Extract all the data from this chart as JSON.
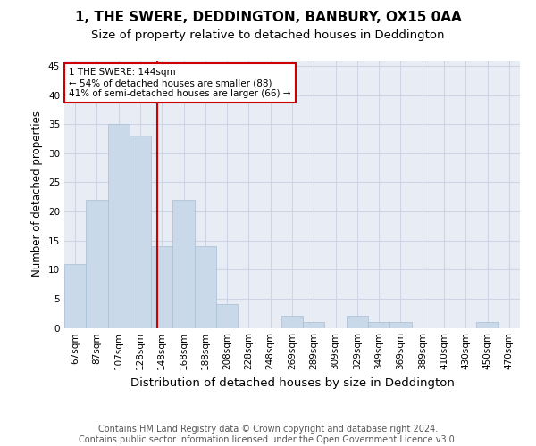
{
  "title": "1, THE SWERE, DEDDINGTON, BANBURY, OX15 0AA",
  "subtitle": "Size of property relative to detached houses in Deddington",
  "xlabel": "Distribution of detached houses by size in Deddington",
  "ylabel": "Number of detached properties",
  "categories": [
    "67sqm",
    "87sqm",
    "107sqm",
    "128sqm",
    "148sqm",
    "168sqm",
    "188sqm",
    "208sqm",
    "228sqm",
    "248sqm",
    "269sqm",
    "289sqm",
    "309sqm",
    "329sqm",
    "349sqm",
    "369sqm",
    "389sqm",
    "410sqm",
    "430sqm",
    "450sqm",
    "470sqm"
  ],
  "values": [
    11,
    22,
    35,
    33,
    14,
    22,
    14,
    4,
    0,
    0,
    2,
    1,
    0,
    2,
    1,
    1,
    0,
    0,
    0,
    1,
    0
  ],
  "bar_color": "#c9d9ea",
  "bar_edge_color": "#a8bfd4",
  "bar_width": 1.0,
  "property_line_label": "1 THE SWERE: 144sqm",
  "annotation_line1": "← 54% of detached houses are smaller (88)",
  "annotation_line2": "41% of semi-detached houses are larger (66) →",
  "annotation_box_color": "#ffffff",
  "annotation_box_edge": "#cc0000",
  "property_line_color": "#cc0000",
  "property_line_xindex": 3.8,
  "ylim": [
    0,
    46
  ],
  "yticks": [
    0,
    5,
    10,
    15,
    20,
    25,
    30,
    35,
    40,
    45
  ],
  "grid_color": "#cdd5e5",
  "background_color": "#e8edf5",
  "footer": "Contains HM Land Registry data © Crown copyright and database right 2024.\nContains public sector information licensed under the Open Government Licence v3.0.",
  "title_fontsize": 11,
  "subtitle_fontsize": 9.5,
  "xlabel_fontsize": 9.5,
  "ylabel_fontsize": 8.5,
  "tick_fontsize": 7.5,
  "annotation_fontsize": 7.5,
  "footer_fontsize": 7
}
